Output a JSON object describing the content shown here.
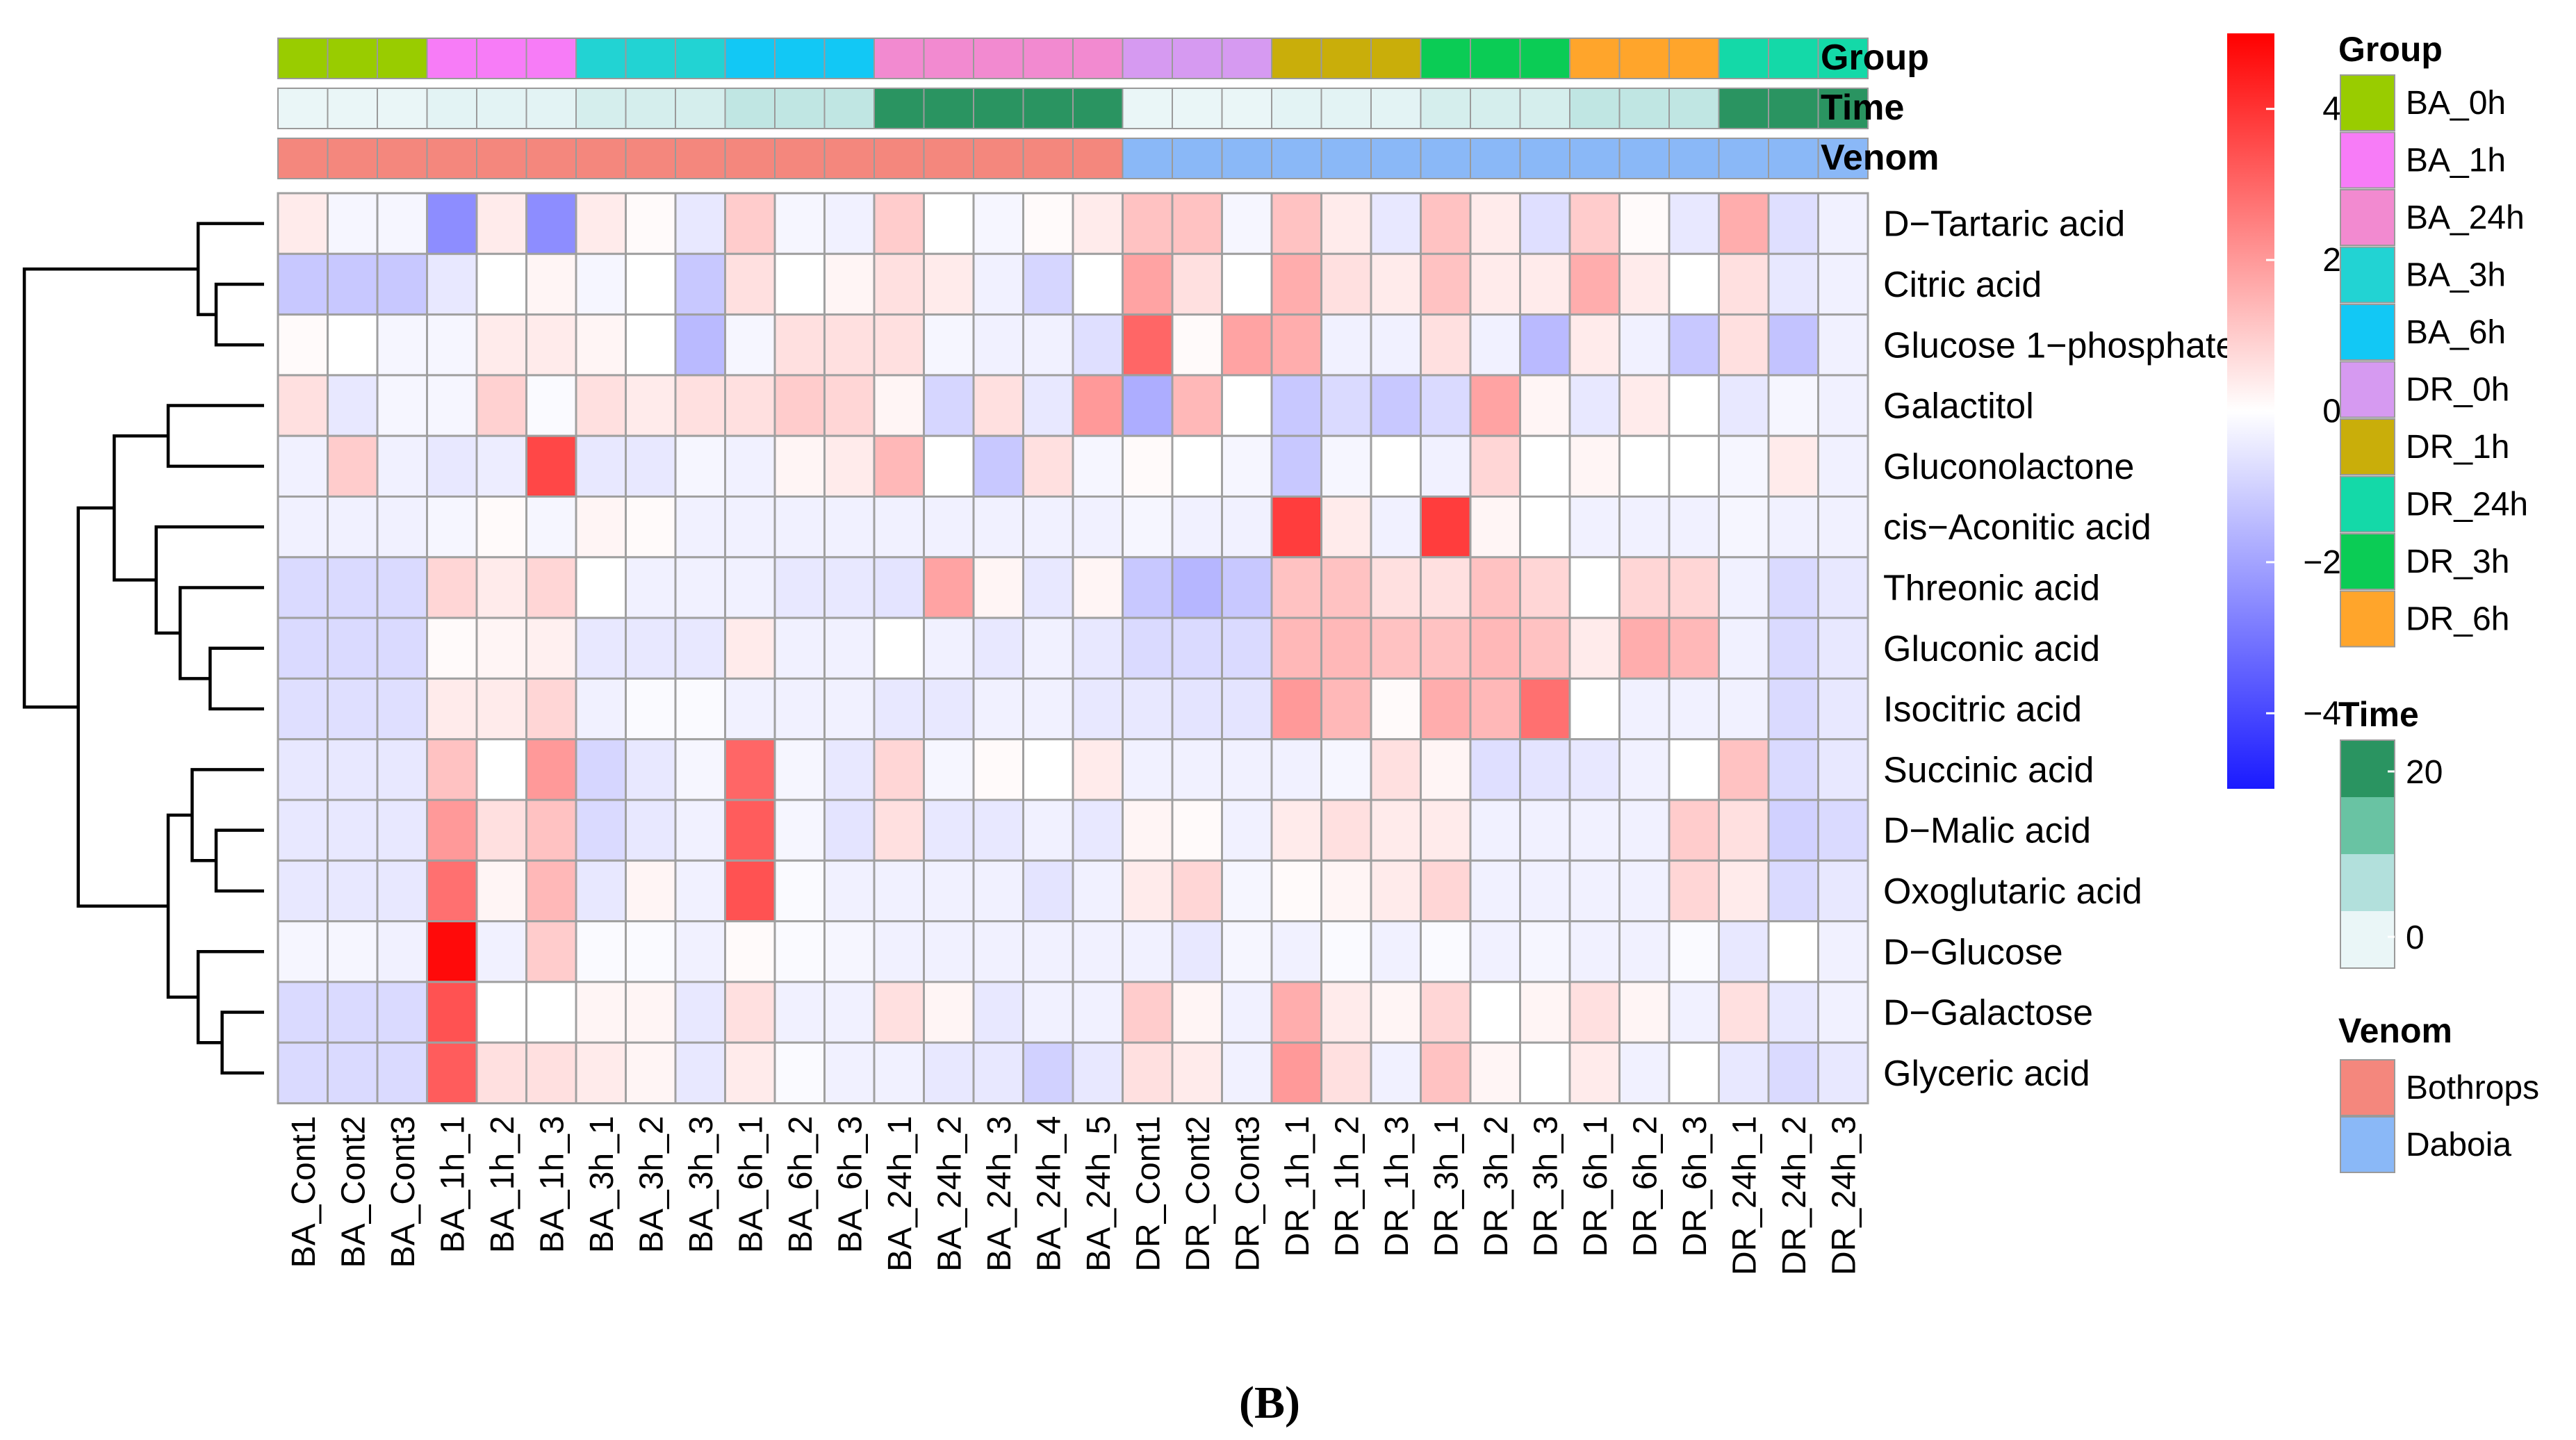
{
  "chart_data": {
    "type": "heatmap",
    "panel_label": "(B)",
    "samples": [
      "BA_Cont1",
      "BA_Cont2",
      "BA_Cont3",
      "BA_1h_1",
      "BA_1h_2",
      "BA_1h_3",
      "BA_3h_1",
      "BA_3h_2",
      "BA_3h_3",
      "BA_6h_1",
      "BA_6h_2",
      "BA_6h_3",
      "BA_24h_1",
      "BA_24h_2",
      "BA_24h_3",
      "BA_24h_4",
      "BA_24h_5",
      "DR_Cont1",
      "DR_Cont2",
      "DR_Cont3",
      "DR_1h_1",
      "DR_1h_2",
      "DR_1h_3",
      "DR_3h_1",
      "DR_3h_2",
      "DR_3h_3",
      "DR_6h_1",
      "DR_6h_2",
      "DR_6h_3",
      "DR_24h_1",
      "DR_24h_2",
      "DR_24h_3"
    ],
    "metabolites": [
      "D−Tartaric acid",
      "Citric acid",
      "Glucose 1−phosphate",
      "Galactitol",
      "Gluconolactone",
      "cis−Aconitic acid",
      "Threonic acid",
      "Gluconic acid",
      "Isocitric acid",
      "Succinic acid",
      "D−Malic acid",
      "Oxoglutaric acid",
      "D−Glucose",
      "D−Galactose",
      "Glyceric acid"
    ],
    "values": [
      [
        0.4,
        -0.2,
        -0.2,
        -2.5,
        0.4,
        -2.5,
        0.4,
        0.1,
        -0.5,
        1.0,
        -0.2,
        -0.3,
        1.0,
        0.0,
        -0.2,
        0.1,
        0.4,
        1.2,
        1.2,
        -0.2,
        1.2,
        0.4,
        -0.5,
        1.2,
        0.4,
        -0.7,
        1.0,
        0.1,
        -0.5,
        1.6,
        -0.7,
        -0.3
      ],
      [
        -1.2,
        -1.2,
        -1.2,
        -0.5,
        0.0,
        0.2,
        -0.2,
        0.0,
        -1.2,
        0.6,
        0.0,
        0.2,
        0.6,
        0.4,
        -0.3,
        -0.9,
        0.0,
        1.8,
        0.6,
        0.0,
        1.6,
        0.6,
        0.4,
        1.2,
        0.4,
        0.4,
        1.6,
        0.4,
        0.0,
        0.6,
        -0.5,
        -0.3
      ],
      [
        0.1,
        0.0,
        -0.2,
        -0.2,
        0.4,
        0.4,
        0.2,
        0.0,
        -1.5,
        -0.2,
        0.6,
        0.6,
        0.6,
        -0.2,
        -0.3,
        -0.3,
        -0.7,
        3.0,
        0.1,
        1.8,
        1.6,
        -0.3,
        -0.3,
        0.6,
        -0.3,
        -1.5,
        0.4,
        -0.3,
        -1.2,
        0.6,
        -1.3,
        -0.3
      ],
      [
        0.6,
        -0.5,
        -0.2,
        -0.2,
        0.9,
        -0.1,
        0.6,
        0.4,
        0.6,
        0.6,
        1.0,
        0.8,
        0.2,
        -0.9,
        0.6,
        -0.5,
        2.0,
        -1.8,
        1.4,
        0.0,
        -1.2,
        -0.8,
        -1.2,
        -0.8,
        1.8,
        0.2,
        -0.5,
        0.4,
        0.0,
        -0.5,
        -0.2,
        -0.3
      ],
      [
        -0.3,
        1.0,
        -0.3,
        -0.5,
        -0.4,
        3.6,
        -0.5,
        -0.5,
        -0.2,
        -0.3,
        0.2,
        0.4,
        1.4,
        0.0,
        -1.2,
        0.6,
        -0.2,
        0.1,
        0.0,
        -0.2,
        -1.2,
        -0.2,
        0.0,
        -0.3,
        0.8,
        0.0,
        0.2,
        0.0,
        0.0,
        -0.2,
        0.4,
        -0.3
      ],
      [
        -0.3,
        -0.3,
        -0.3,
        -0.2,
        0.1,
        -0.2,
        0.2,
        0.1,
        -0.3,
        -0.3,
        -0.3,
        -0.3,
        -0.3,
        -0.3,
        -0.3,
        -0.3,
        -0.3,
        -0.2,
        -0.3,
        -0.3,
        3.8,
        0.4,
        -0.3,
        3.8,
        0.2,
        0.0,
        -0.3,
        -0.3,
        -0.3,
        -0.2,
        -0.3,
        -0.3
      ],
      [
        -0.8,
        -0.8,
        -0.8,
        0.8,
        0.4,
        0.8,
        0.0,
        -0.3,
        -0.3,
        -0.3,
        -0.5,
        -0.5,
        -0.6,
        1.8,
        0.2,
        -0.5,
        0.2,
        -1.2,
        -1.6,
        -1.2,
        1.2,
        1.2,
        0.6,
        0.6,
        1.2,
        0.8,
        0.0,
        0.8,
        0.8,
        -0.3,
        -0.8,
        -0.5
      ],
      [
        -0.8,
        -0.8,
        -0.8,
        0.1,
        0.2,
        0.3,
        -0.5,
        -0.5,
        -0.5,
        0.4,
        -0.3,
        -0.3,
        0.0,
        -0.3,
        -0.5,
        -0.3,
        -0.5,
        -0.8,
        -0.8,
        -0.8,
        1.4,
        1.4,
        1.2,
        1.2,
        1.4,
        1.2,
        0.4,
        1.6,
        1.4,
        -0.3,
        -0.8,
        -0.5
      ],
      [
        -0.7,
        -0.7,
        -0.7,
        0.4,
        0.4,
        0.8,
        -0.3,
        -0.1,
        -0.1,
        -0.3,
        -0.3,
        -0.3,
        -0.5,
        -0.5,
        -0.3,
        -0.3,
        -0.5,
        -0.5,
        -0.6,
        -0.6,
        2.0,
        1.4,
        0.1,
        1.6,
        1.4,
        2.8,
        0.0,
        -0.3,
        -0.3,
        -0.3,
        -0.8,
        -0.5
      ],
      [
        -0.5,
        -0.5,
        -0.5,
        1.2,
        0.0,
        2.0,
        -0.9,
        -0.5,
        -0.2,
        3.0,
        -0.2,
        -0.5,
        0.8,
        -0.2,
        0.1,
        0.0,
        0.4,
        -0.3,
        -0.3,
        -0.3,
        -0.3,
        -0.2,
        0.6,
        0.2,
        -0.7,
        -0.6,
        -0.5,
        -0.3,
        0.0,
        1.2,
        -0.8,
        -0.5
      ],
      [
        -0.5,
        -0.5,
        -0.5,
        2.0,
        0.6,
        1.2,
        -0.8,
        -0.5,
        -0.3,
        3.2,
        -0.2,
        -0.6,
        0.6,
        -0.5,
        -0.5,
        -0.3,
        -0.5,
        0.2,
        0.1,
        -0.3,
        0.4,
        0.6,
        0.4,
        0.4,
        -0.3,
        -0.3,
        -0.3,
        -0.3,
        1.0,
        0.6,
        -1.0,
        -0.8
      ],
      [
        -0.5,
        -0.5,
        -0.5,
        2.8,
        0.2,
        1.4,
        -0.5,
        0.2,
        -0.3,
        3.4,
        -0.1,
        -0.3,
        -0.3,
        -0.3,
        -0.3,
        -0.6,
        -0.3,
        0.4,
        0.8,
        -0.2,
        0.1,
        0.2,
        0.4,
        0.8,
        -0.3,
        -0.3,
        -0.3,
        -0.3,
        0.8,
        0.4,
        -0.8,
        -0.5
      ],
      [
        -0.2,
        -0.2,
        -0.3,
        4.8,
        -0.3,
        1.0,
        -0.1,
        -0.1,
        -0.3,
        0.1,
        -0.1,
        -0.2,
        -0.3,
        -0.3,
        -0.3,
        -0.3,
        -0.3,
        -0.3,
        -0.5,
        -0.2,
        -0.3,
        -0.1,
        -0.3,
        -0.1,
        -0.3,
        -0.2,
        -0.3,
        -0.3,
        -0.1,
        -0.5,
        0.0,
        -0.3
      ],
      [
        -0.8,
        -0.8,
        -0.8,
        3.4,
        0.0,
        0.0,
        0.2,
        0.2,
        -0.5,
        0.6,
        -0.3,
        -0.3,
        0.6,
        0.2,
        -0.5,
        -0.3,
        -0.3,
        1.0,
        0.2,
        -0.3,
        1.6,
        0.4,
        0.2,
        0.8,
        0.0,
        0.2,
        0.6,
        0.2,
        -0.3,
        0.6,
        -0.5,
        -0.3
      ],
      [
        -0.8,
        -0.8,
        -0.8,
        3.2,
        0.6,
        0.6,
        0.4,
        0.2,
        -0.5,
        0.4,
        -0.1,
        -0.3,
        -0.3,
        -0.5,
        -0.5,
        -1.0,
        -0.5,
        0.6,
        0.4,
        -0.3,
        2.0,
        0.6,
        -0.3,
        1.2,
        0.2,
        0.0,
        0.4,
        -0.3,
        0.0,
        -0.5,
        -0.8,
        -0.5
      ]
    ],
    "color_scale": {
      "min": -5,
      "max": 5,
      "low": "#1a1aff",
      "mid": "#ffffff",
      "high": "#ff0000",
      "ticks": [
        4,
        2,
        0,
        -2,
        -4
      ]
    },
    "annotation_tracks": [
      "Group",
      "Time",
      "Venom"
    ],
    "group_per_sample": [
      "BA_0h",
      "BA_0h",
      "BA_0h",
      "BA_1h",
      "BA_1h",
      "BA_1h",
      "BA_3h",
      "BA_3h",
      "BA_3h",
      "BA_6h",
      "BA_6h",
      "BA_6h",
      "BA_24h",
      "BA_24h",
      "BA_24h",
      "BA_24h",
      "BA_24h",
      "DR_0h",
      "DR_0h",
      "DR_0h",
      "DR_1h",
      "DR_1h",
      "DR_1h",
      "DR_3h",
      "DR_3h",
      "DR_3h",
      "DR_6h",
      "DR_6h",
      "DR_6h",
      "DR_24h",
      "DR_24h",
      "DR_24h"
    ],
    "time_per_sample": [
      0,
      0,
      0,
      1,
      1,
      1,
      3,
      3,
      3,
      6,
      6,
      6,
      24,
      24,
      24,
      24,
      24,
      0,
      0,
      0,
      1,
      1,
      1,
      3,
      3,
      3,
      6,
      6,
      6,
      24,
      24,
      24
    ],
    "venom_per_sample": [
      "Bothrops",
      "Bothrops",
      "Bothrops",
      "Bothrops",
      "Bothrops",
      "Bothrops",
      "Bothrops",
      "Bothrops",
      "Bothrops",
      "Bothrops",
      "Bothrops",
      "Bothrops",
      "Bothrops",
      "Bothrops",
      "Bothrops",
      "Bothrops",
      "Bothrops",
      "Daboia",
      "Daboia",
      "Daboia",
      "Daboia",
      "Daboia",
      "Daboia",
      "Daboia",
      "Daboia",
      "Daboia",
      "Daboia",
      "Daboia",
      "Daboia",
      "Daboia",
      "Daboia",
      "Daboia"
    ],
    "group_legend": {
      "title": "Group",
      "items": [
        {
          "name": "BA_0h",
          "color": "#99cc00"
        },
        {
          "name": "BA_1h",
          "color": "#f77cf7"
        },
        {
          "name": "BA_24h",
          "color": "#f28ad0"
        },
        {
          "name": "BA_3h",
          "color": "#22d3d3"
        },
        {
          "name": "BA_6h",
          "color": "#12c8f5"
        },
        {
          "name": "DR_0h",
          "color": "#d69af1"
        },
        {
          "name": "DR_1h",
          "color": "#c9ae0a"
        },
        {
          "name": "DR_24h",
          "color": "#14d9a8"
        },
        {
          "name": "DR_3h",
          "color": "#0bcc55"
        },
        {
          "name": "DR_6h",
          "color": "#ffa52b"
        }
      ]
    },
    "time_legend": {
      "title": "Time",
      "ticks": [
        {
          "label": "20",
          "value": 20
        },
        {
          "label": "0",
          "value": 0
        }
      ],
      "colors": [
        "#2a9461",
        "#69c3a3",
        "#b2e0dc",
        "#eaf6f7"
      ],
      "range": [
        0,
        24
      ]
    },
    "venom_legend": {
      "title": "Venom",
      "items": [
        {
          "name": "Bothrops",
          "color": "#f4877d"
        },
        {
          "name": "Daboia",
          "color": "#8ab8f7"
        }
      ]
    },
    "row_dendrogram": {
      "leaf_order": [
        "D−Tartaric acid",
        "Citric acid",
        "Glucose 1−phosphate",
        "Galactitol",
        "Gluconolactone",
        "cis−Aconitic acid",
        "Threonic acid",
        "Gluconic acid",
        "Isocitric acid",
        "Succinic acid",
        "D−Malic acid",
        "Oxoglutaric acid",
        "D−Glucose",
        "D−Galactose",
        "Glyceric acid"
      ],
      "merges": [
        {
          "a": 1,
          "b": 2,
          "height": 0.4
        },
        {
          "a": 0,
          "b": "m0",
          "height": 0.55
        },
        {
          "a": 3,
          "b": 4,
          "height": 0.8
        },
        {
          "a": 7,
          "b": 8,
          "height": 0.45
        },
        {
          "a": 6,
          "b": "m3",
          "height": 0.7
        },
        {
          "a": 5,
          "b": "m4",
          "height": 0.9
        },
        {
          "a": "m2",
          "b": "m5",
          "height": 1.25
        },
        {
          "a": 10,
          "b": 11,
          "height": 0.4
        },
        {
          "a": 9,
          "b": "m7",
          "height": 0.6
        },
        {
          "a": 13,
          "b": 14,
          "height": 0.35
        },
        {
          "a": 12,
          "b": "m9",
          "height": 0.55
        },
        {
          "a": "m8",
          "b": "m10",
          "height": 0.8
        },
        {
          "a": "m6",
          "b": "m11",
          "height": 1.55
        },
        {
          "a": "m1",
          "b": "m12",
          "height": 2.0
        }
      ]
    }
  }
}
